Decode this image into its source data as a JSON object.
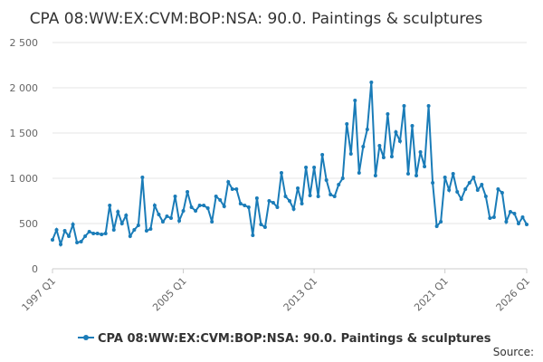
{
  "chart_data": {
    "type": "line",
    "title": "CPA 08:WW:EX:CVM:BOP:NSA: 90.0. Paintings & sculptures",
    "source": "Source:",
    "categories": [
      "1997 Q1",
      null,
      null,
      null,
      null,
      null,
      null,
      null,
      null,
      null,
      null,
      null,
      null,
      null,
      null,
      null,
      null,
      null,
      null,
      null,
      null,
      null,
      null,
      null,
      null,
      null,
      null,
      null,
      null,
      null,
      null,
      null,
      "2005 Q1",
      null,
      null,
      null,
      null,
      null,
      null,
      null,
      null,
      null,
      null,
      null,
      null,
      null,
      null,
      null,
      null,
      null,
      null,
      null,
      null,
      null,
      null,
      null,
      null,
      null,
      null,
      null,
      null,
      null,
      null,
      null,
      "2013 Q1",
      null,
      null,
      null,
      null,
      null,
      null,
      null,
      null,
      null,
      null,
      null,
      null,
      null,
      null,
      null,
      null,
      null,
      null,
      null,
      null,
      null,
      null,
      null,
      null,
      null,
      null,
      null,
      null,
      null,
      null,
      null,
      "2021 Q1",
      null,
      null,
      null,
      null,
      null,
      null,
      null,
      null,
      null,
      null,
      null,
      null,
      null,
      null,
      null,
      null,
      null,
      null,
      null,
      "2026 Q1"
    ],
    "series": [
      {
        "name": "CPA 08:WW:EX:CVM:BOP:NSA: 90.0. Paintings & sculptures",
        "color": "#1a7cb8",
        "values": [
          320,
          430,
          270,
          420,
          360,
          490,
          290,
          300,
          360,
          410,
          390,
          390,
          380,
          390,
          700,
          430,
          630,
          500,
          590,
          360,
          430,
          480,
          1010,
          420,
          440,
          700,
          600,
          520,
          580,
          560,
          800,
          530,
          640,
          850,
          680,
          640,
          700,
          700,
          670,
          520,
          800,
          760,
          690,
          960,
          880,
          880,
          720,
          700,
          680,
          370,
          780,
          490,
          460,
          750,
          730,
          680,
          1060,
          800,
          750,
          660,
          890,
          720,
          1120,
          810,
          1120,
          800,
          1260,
          980,
          820,
          800,
          930,
          1000,
          1600,
          1270,
          1860,
          1060,
          1350,
          1540,
          2060,
          1030,
          1360,
          1230,
          1710,
          1240,
          1510,
          1410,
          1800,
          1050,
          1580,
          1030,
          1290,
          1130,
          1800,
          950,
          470,
          520,
          1010,
          870,
          1050,
          850,
          770,
          880,
          950,
          1010,
          870,
          930,
          800,
          560,
          570,
          880,
          840,
          520,
          630,
          610,
          500,
          570,
          490
        ]
      }
    ],
    "ylim": [
      0,
      2500
    ],
    "yticks": [
      0,
      500,
      {
        "value": 1000,
        "label": "1 000"
      },
      {
        "value": 1500,
        "label": "1 500"
      },
      {
        "value": 2000,
        "label": "2 000"
      },
      {
        "value": 2500,
        "label": "2 500"
      }
    ],
    "grid": true
  }
}
